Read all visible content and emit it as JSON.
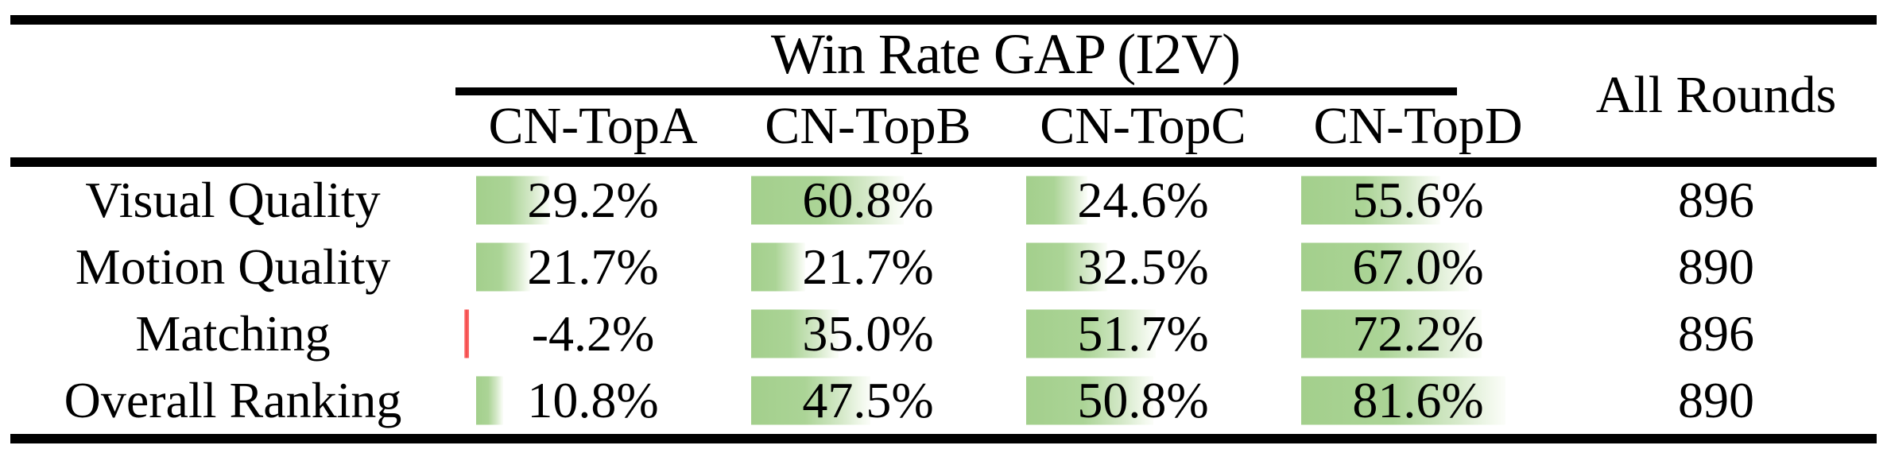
{
  "header": {
    "group": "Win Rate GAP (I2V)",
    "all_rounds": "All Rounds",
    "columns": [
      "CN-TopA",
      "CN-TopB",
      "CN-TopC",
      "CN-TopD"
    ]
  },
  "rows": [
    {
      "label": "Visual Quality",
      "cells": [
        {
          "text": "29.2%",
          "value": 29.2
        },
        {
          "text": "60.8%",
          "value": 60.8
        },
        {
          "text": "24.6%",
          "value": 24.6
        },
        {
          "text": "55.6%",
          "value": 55.6
        }
      ],
      "all_rounds": "896"
    },
    {
      "label": "Motion Quality",
      "cells": [
        {
          "text": "21.7%",
          "value": 21.7
        },
        {
          "text": "21.7%",
          "value": 21.7
        },
        {
          "text": "32.5%",
          "value": 32.5
        },
        {
          "text": "67.0%",
          "value": 67.0
        }
      ],
      "all_rounds": "890"
    },
    {
      "label": "Matching",
      "cells": [
        {
          "text": "-4.2%",
          "value": -4.2
        },
        {
          "text": "35.0%",
          "value": 35.0
        },
        {
          "text": "51.7%",
          "value": 51.7
        },
        {
          "text": "72.2%",
          "value": 72.2
        }
      ],
      "all_rounds": "896"
    },
    {
      "label": "Overall Ranking",
      "cells": [
        {
          "text": "10.8%",
          "value": 10.8
        },
        {
          "text": "47.5%",
          "value": 47.5
        },
        {
          "text": "50.8%",
          "value": 50.8
        },
        {
          "text": "81.6%",
          "value": 81.6
        }
      ],
      "all_rounds": "890"
    }
  ],
  "colors": {
    "bar_positive": "#a9d293",
    "bar_positive_fade": "#fbfdf9",
    "bar_negative": "#f64545",
    "rule": "#000000",
    "background": "#ffffff",
    "text": "#000000"
  },
  "chart_data": {
    "type": "table",
    "title": "Win Rate GAP (I2V)",
    "columns": [
      "CN-TopA",
      "CN-TopB",
      "CN-TopC",
      "CN-TopD",
      "All Rounds"
    ],
    "row_labels": [
      "Visual Quality",
      "Motion Quality",
      "Matching",
      "Overall Ranking"
    ],
    "series": [
      {
        "name": "CN-TopA",
        "values": [
          29.2,
          21.7,
          -4.2,
          10.8
        ]
      },
      {
        "name": "CN-TopB",
        "values": [
          60.8,
          21.7,
          35.0,
          47.5
        ]
      },
      {
        "name": "CN-TopC",
        "values": [
          24.6,
          32.5,
          51.7,
          50.8
        ]
      },
      {
        "name": "CN-TopD",
        "values": [
          55.6,
          67.0,
          72.2,
          81.6
        ]
      }
    ],
    "all_rounds": [
      896,
      890,
      896,
      890
    ],
    "units": "percent",
    "notes": "Win-rate-gap percentages shown with in-cell gradient data bars; green for positive, red for negative; bar length proportional to value.",
    "bar_color": "#a9d293",
    "negative_bar_color": "#f64545",
    "legend_position": "none",
    "grid": false
  }
}
